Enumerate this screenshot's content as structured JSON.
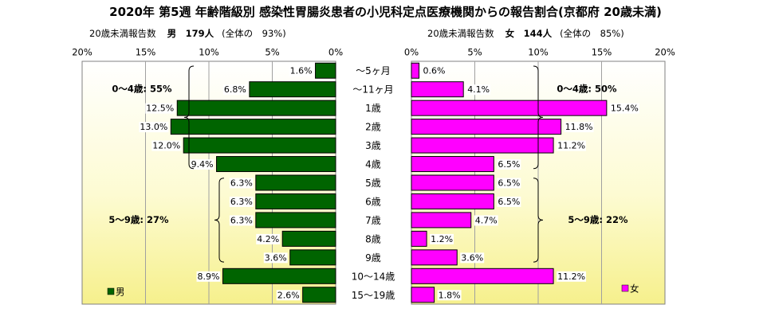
{
  "title": "2020年 第5週 年齢階級別 感染性胃腸炎患者の小児科定点医療機関からの報告割合(京都府 20歳未満)",
  "male_header": {
    "label": "20歳未満報告数",
    "count": "男　179人",
    "share": "(全体の　93%)"
  },
  "female_header": {
    "label": "20歳未満報告数",
    "count": "女　144人",
    "share": "(全体の　85%)"
  },
  "chart_data": [
    {
      "type": "bar",
      "orientation": "horizontal",
      "direction": "right-to-left",
      "categories": [
        "～5ヶ月",
        "～11ヶ月",
        "1歳",
        "2歳",
        "3歳",
        "4歳",
        "5歳",
        "6歳",
        "7歳",
        "8歳",
        "9歳",
        "10～14歳",
        "15～19歳"
      ],
      "series": [
        {
          "name": "男",
          "values": [
            1.6,
            6.8,
            12.5,
            13.0,
            12.0,
            9.4,
            6.3,
            6.3,
            6.3,
            4.2,
            3.6,
            8.9,
            2.6
          ],
          "color": "#006400"
        }
      ],
      "value_labels": [
        "1.6%",
        "6.8%",
        "12.5%",
        "13.0%",
        "12.0%",
        "9.4%",
        "6.3%",
        "6.3%",
        "6.3%",
        "4.2%",
        "3.6%",
        "8.9%",
        "2.6%"
      ],
      "xlim": [
        0,
        20
      ],
      "x_ticks": [
        "0%",
        "5%",
        "10%",
        "15%",
        "20%"
      ],
      "grid": true,
      "legend": {
        "label": "男",
        "position": "bottom-left"
      },
      "annotations": [
        {
          "text": "0～4歳: 55%",
          "from": 0,
          "to": 5
        },
        {
          "text": "5～9歳: 27%",
          "from": 6,
          "to": 10
        }
      ]
    },
    {
      "type": "bar",
      "orientation": "horizontal",
      "direction": "left-to-right",
      "categories": [
        "～5ヶ月",
        "～11ヶ月",
        "1歳",
        "2歳",
        "3歳",
        "4歳",
        "5歳",
        "6歳",
        "7歳",
        "8歳",
        "9歳",
        "10～14歳",
        "15～19歳"
      ],
      "series": [
        {
          "name": "女",
          "values": [
            0.6,
            4.1,
            15.4,
            11.8,
            11.2,
            6.5,
            6.5,
            6.5,
            4.7,
            1.2,
            3.6,
            11.2,
            1.8
          ],
          "color": "#ff00ff"
        }
      ],
      "value_labels": [
        "0.6%",
        "4.1%",
        "15.4%",
        "11.8%",
        "11.2%",
        "6.5%",
        "6.5%",
        "6.5%",
        "4.7%",
        "1.2%",
        "3.6%",
        "11.2%",
        "1.8%"
      ],
      "xlim": [
        0,
        20
      ],
      "x_ticks": [
        "0%",
        "5%",
        "10%",
        "15%",
        "20%"
      ],
      "grid": true,
      "legend": {
        "label": "女",
        "position": "bottom-right"
      },
      "annotations": [
        {
          "text": "0～4歳: 50%",
          "from": 0,
          "to": 5
        },
        {
          "text": "5～9歳: 22%",
          "from": 6,
          "to": 10
        }
      ]
    }
  ]
}
